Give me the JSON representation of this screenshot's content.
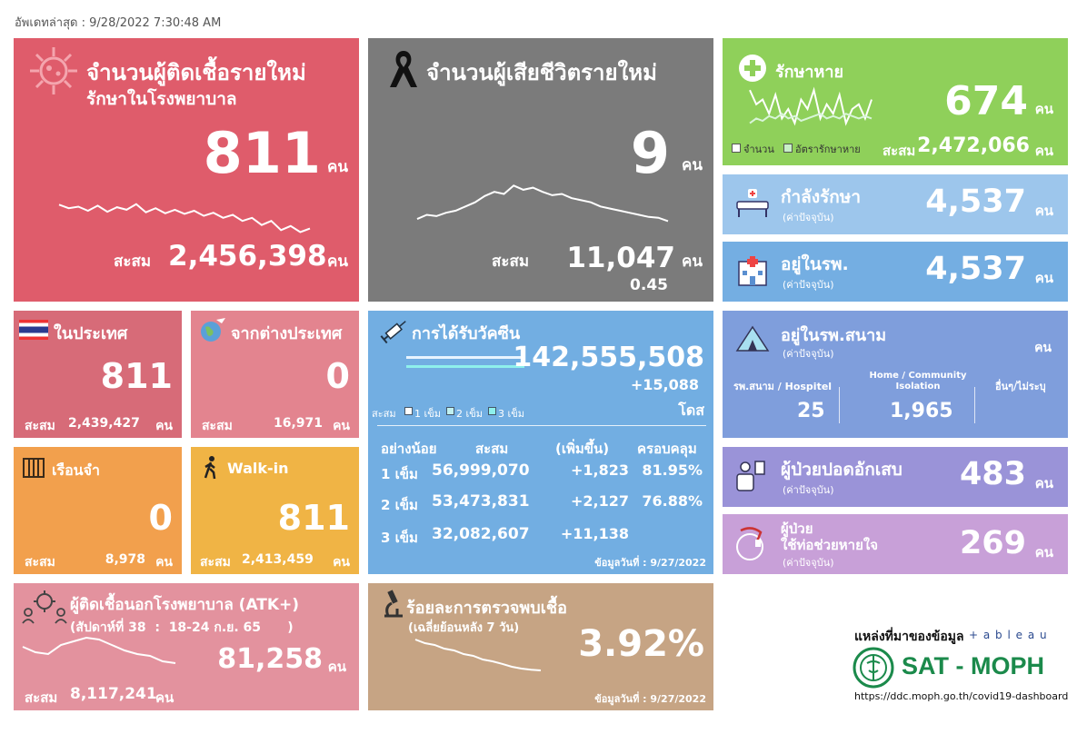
{
  "updated": {
    "label": "อัพเดทล่าสุด :",
    "value": "9/28/2022 7:30:48 AM"
  },
  "new_cases": {
    "title1": "จำนวนผู้ติดเชื้อรายใหม่",
    "title2": "รักษาในโรงพยาบาล",
    "value": "811",
    "unit": "คน",
    "cum_label": "สะสม",
    "cum_value": "2,456,398",
    "cum_unit": "คน",
    "color": "#df5c6b",
    "icon": "virus-icon"
  },
  "deaths": {
    "title": "จำนวนผู้เสียชีวิตรายใหม่",
    "value": "9",
    "unit": "คน",
    "cum_label": "สะสม",
    "cum_value": "11,047",
    "cum_unit": "คน",
    "rate": "0.45",
    "color": "#7b7b7b",
    "icon": "ribbon-icon"
  },
  "recovered": {
    "title": "รักษาหาย",
    "value": "674",
    "unit": "คน",
    "legend1": "จำนวน",
    "legend2": "อัตรารักษาหาย",
    "cum_label": "สะสม",
    "cum_value": "2,472,066",
    "cum_unit": "คน",
    "color": "#8fd05a",
    "icon": "medical-cross-icon"
  },
  "treating": {
    "title": "กำลังรักษา",
    "sub": "(ค่าปัจจุบัน)",
    "value": "4,537",
    "unit": "คน",
    "color": "#9dc6ec",
    "icon": "hospital-bed-icon"
  },
  "in_hospital": {
    "title": "อยู่ในรพ.",
    "sub": "(ค่าปัจจุบัน)",
    "value": "4,537",
    "unit": "คน",
    "color": "#74aee2",
    "icon": "hospital-building-icon"
  },
  "domestic": {
    "title": "ในประเทศ",
    "value": "811",
    "cum_label": "สะสม",
    "cum_value": "2,439,427",
    "cum_unit": "คน",
    "color": "#d76b78",
    "icon": "thai-flag-icon"
  },
  "abroad": {
    "title": "จากต่างประเทศ",
    "value": "0",
    "cum_label": "สะสม",
    "cum_value": "16,971",
    "cum_unit": "คน",
    "color": "#e3848f",
    "icon": "globe-plane-icon"
  },
  "prison": {
    "title": "เรือนจำ",
    "value": "0",
    "cum_label": "สะสม",
    "cum_value": "8,978",
    "cum_unit": "คน",
    "color": "#f2a04d",
    "icon": "prison-bars-icon"
  },
  "walkin": {
    "title": "Walk-in",
    "value": "811",
    "cum_label": "สะสม",
    "cum_value": "2,413,459",
    "cum_unit": "คน",
    "color": "#f0b445",
    "icon": "walking-person-icon"
  },
  "vaccine": {
    "title": "การได้รับวัคซีน",
    "total": "142,555,508",
    "increase": "+15,088",
    "dose_unit": "โดส",
    "legend_prefix": "สะสม",
    "legend": [
      "1 เข็ม",
      "2 เข็ม",
      "3 เข็ม"
    ],
    "headers": [
      "อย่างน้อย",
      "สะสม",
      "(เพิ่มขึ้น)",
      "ครอบคลุม"
    ],
    "rows": [
      {
        "dose": "1 เข็ม",
        "cum": "56,999,070",
        "inc": "+1,823",
        "cov": "81.95%"
      },
      {
        "dose": "2 เข็ม",
        "cum": "53,473,831",
        "inc": "+2,127",
        "cov": "76.88%"
      },
      {
        "dose": "3 เข็ม",
        "cum": "32,082,607",
        "inc": "+11,138",
        "cov": ""
      }
    ],
    "data_date": "ข้อมูลวันที่ : 9/27/2022",
    "color": "#72aee2",
    "icon": "syringe-icon"
  },
  "field_hospital": {
    "title": "อยู่ในรพ.สนาม",
    "sub": "(ค่าปัจจุบัน)",
    "unit": "คน",
    "col1_label": "รพ.สนาม / Hospitel",
    "col1_value": "25",
    "col2_label": "Home / Community\nIsolation",
    "col2_value": "1,965",
    "col3_label": "อื่นๆ/ไม่ระบุ",
    "color": "#7f9edc",
    "icon": "tent-icon"
  },
  "pneumonia": {
    "title": "ผู้ป่วยปอดอักเสบ",
    "sub": "(ค่าปัจจุบัน)",
    "value": "483",
    "unit": "คน",
    "color": "#9a93d8",
    "icon": "patient-icon"
  },
  "ventilator": {
    "title1": "ผู้ป่วย",
    "title2": "ใช้ท่อช่วยหายใจ",
    "sub": "(ค่าปัจจุบัน)",
    "value": "269",
    "unit": "คน",
    "color": "#c8a0d8",
    "icon": "ventilator-icon"
  },
  "atk": {
    "title": "ผู้ติดเชื้อนอกโรงพยาบาล (ATK+)",
    "week": "(สัปดาห์ที่ 38  :  18-24 ก.ย. 65      )",
    "value": "81,258",
    "unit": "คน",
    "cum_label": "สะสม",
    "cum_value": "8,117,241",
    "cum_unit": "คน",
    "color": "#e3929e",
    "icon": "virus-people-icon"
  },
  "positivity": {
    "title": "ร้อยละการตรวจพบเชื้อ",
    "sub": "(เฉลี่ยย้อนหลัง 7 วัน)",
    "value": "3.92%",
    "data_date": "ข้อมูลวันที่ : 9/27/2022",
    "color": "#c6a484",
    "icon": "microscope-icon"
  },
  "source": {
    "label": "แหล่งที่มาของข้อมูล",
    "tableau": "+ a b l e a u",
    "brand": "SAT - MOPH",
    "url": "https://ddc.moph.go.th/covid19-dashboard",
    "icon": "moph-logo-icon"
  },
  "chart_data": [
    {
      "type": "line",
      "title": "",
      "series": [
        {
          "values": [
            0.62,
            0.55,
            0.58,
            0.5,
            0.6,
            0.48,
            0.57,
            0.52,
            0.63,
            0.47,
            0.55,
            0.45,
            0.52,
            0.44,
            0.5,
            0.4,
            0.46,
            0.36,
            0.42,
            0.3,
            0.36,
            0.22,
            0.3,
            0.12,
            0.2,
            0.08,
            0.15
          ]
        }
      ]
    },
    {
      "type": "line",
      "title": "",
      "series": [
        {
          "values": [
            0.15,
            0.25,
            0.22,
            0.3,
            0.35,
            0.45,
            0.55,
            0.7,
            0.8,
            0.75,
            0.95,
            0.85,
            0.9,
            0.8,
            0.72,
            0.75,
            0.65,
            0.6,
            0.55,
            0.45,
            0.4,
            0.35,
            0.3,
            0.25,
            0.2,
            0.18,
            0.1
          ]
        }
      ]
    },
    {
      "type": "line",
      "title": "",
      "series": [
        {
          "values": [
            0.9,
            0.6,
            0.7,
            0.4,
            0.8,
            0.3,
            0.5,
            0.2,
            0.7,
            0.5,
            0.9,
            0.3,
            0.6,
            0.4,
            0.8,
            0.2,
            0.5,
            0.6,
            0.3,
            0.7
          ]
        },
        {
          "values": [
            0.2,
            0.3,
            0.25,
            0.35,
            0.3,
            0.4,
            0.3,
            0.35,
            0.25,
            0.3,
            0.35,
            0.4,
            0.3,
            0.35,
            0.3,
            0.4,
            0.35,
            0.3,
            0.35,
            0.3
          ]
        }
      ]
    },
    {
      "type": "line",
      "title": "",
      "series": [
        {
          "values": [
            0.7,
            0.55,
            0.5,
            0.75,
            0.85,
            0.95,
            0.9,
            0.75,
            0.6,
            0.5,
            0.45,
            0.3,
            0.25
          ]
        }
      ]
    },
    {
      "type": "line",
      "title": "",
      "series": [
        {
          "values": [
            0.95,
            0.85,
            0.8,
            0.7,
            0.65,
            0.55,
            0.5,
            0.4,
            0.35,
            0.28,
            0.2,
            0.15,
            0.12,
            0.1
          ]
        }
      ]
    }
  ]
}
